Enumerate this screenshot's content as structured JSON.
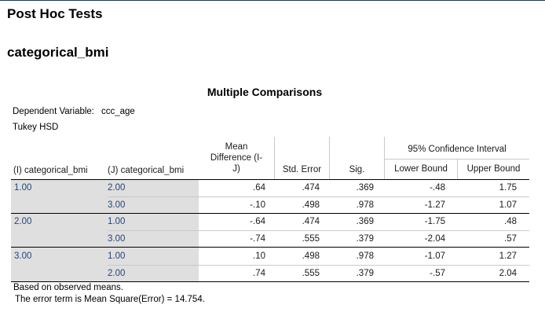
{
  "section_title": "Post Hoc Tests",
  "subsection_title": "categorical_bmi",
  "table": {
    "title": "Multiple Comparisons",
    "dependent_label": "Dependent Variable:",
    "dependent_value": "ccc_age",
    "method": "Tukey HSD",
    "headers": {
      "i": "(I) categorical_bmi",
      "j": "(J) categorical_bmi",
      "mean_diff_line1": "Mean",
      "mean_diff_line2": "Difference (I-",
      "mean_diff_line3": "J)",
      "std_error": "Std. Error",
      "sig": "Sig.",
      "ci": "95% Confidence Interval",
      "lower": "Lower Bound",
      "upper": "Upper Bound"
    },
    "rows": [
      {
        "i": "1.00",
        "j": "2.00",
        "md": ".64",
        "se": ".474",
        "sig": ".369",
        "lo": "-.48",
        "hi": "1.75"
      },
      {
        "i": "",
        "j": "3.00",
        "md": "-.10",
        "se": ".498",
        "sig": ".978",
        "lo": "-1.27",
        "hi": "1.07"
      },
      {
        "i": "2.00",
        "j": "1.00",
        "md": "-.64",
        "se": ".474",
        "sig": ".369",
        "lo": "-1.75",
        "hi": ".48"
      },
      {
        "i": "",
        "j": "3.00",
        "md": "-.74",
        "se": ".555",
        "sig": ".379",
        "lo": "-2.04",
        "hi": ".57"
      },
      {
        "i": "3.00",
        "j": "1.00",
        "md": ".10",
        "se": ".498",
        "sig": ".978",
        "lo": "-1.07",
        "hi": "1.27"
      },
      {
        "i": "",
        "j": "2.00",
        "md": ".74",
        "se": ".555",
        "sig": ".379",
        "lo": "-.57",
        "hi": "2.04"
      }
    ],
    "footnote1": "Based on observed means.",
    "footnote2": "The error term is Mean Square(Error) = 14.754."
  },
  "colors": {
    "label_text": "#264478",
    "shaded_cells": "#dfdfdf",
    "top_rule": "#1f3a5f"
  }
}
